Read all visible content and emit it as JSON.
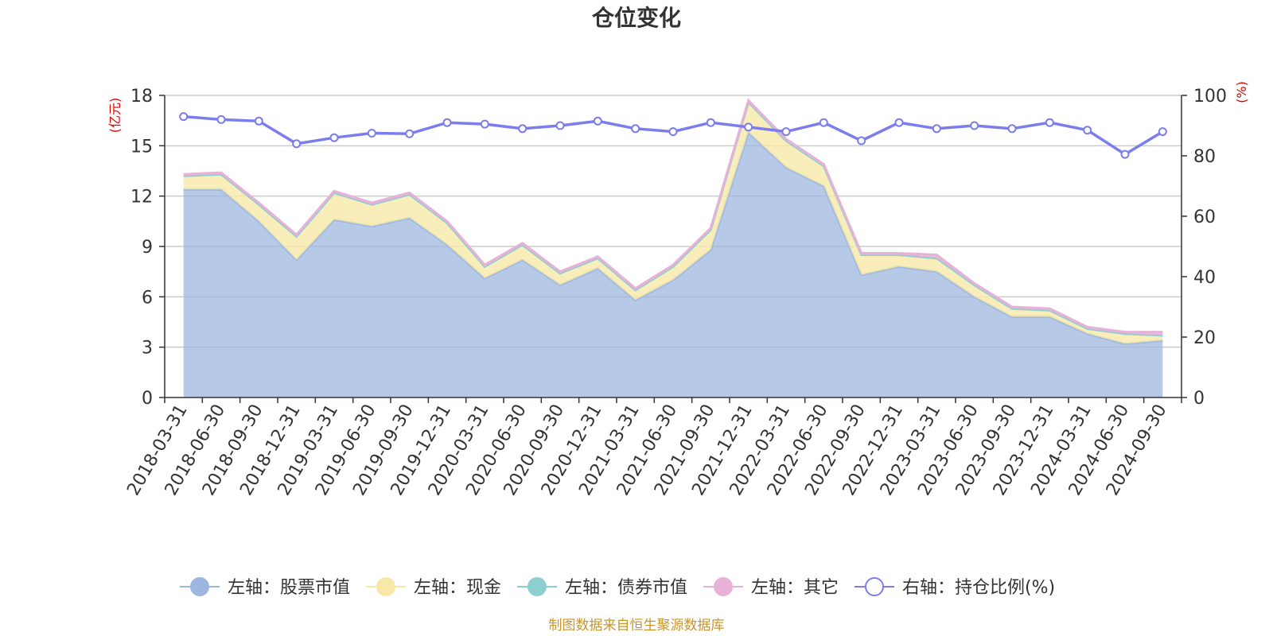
{
  "chart_data": {
    "type": "area",
    "title": "仓位变化",
    "left_unit": "(亿元)",
    "right_unit": "(%)",
    "left_ylim": [
      0,
      18
    ],
    "left_ticks": [
      "0",
      "3",
      "6",
      "9",
      "12",
      "15",
      "18"
    ],
    "right_ylim": [
      0,
      100
    ],
    "right_ticks": [
      "0",
      "20",
      "40",
      "60",
      "80",
      "100"
    ],
    "categories": [
      "2018-03-31",
      "2018-06-30",
      "2018-09-30",
      "2018-12-31",
      "2019-03-31",
      "2019-06-30",
      "2019-09-30",
      "2019-12-31",
      "2020-03-31",
      "2020-06-30",
      "2020-09-30",
      "2020-12-31",
      "2021-03-31",
      "2021-06-30",
      "2021-09-30",
      "2021-12-31",
      "2022-03-31",
      "2022-06-30",
      "2022-09-30",
      "2022-12-31",
      "2023-03-31",
      "2023-06-30",
      "2023-09-30",
      "2023-12-31",
      "2024-03-31",
      "2024-06-30",
      "2024-09-30"
    ],
    "series": [
      {
        "name": "左轴：股票市值",
        "axis": "left",
        "color": "#9db8e0",
        "values": [
          12.4,
          12.4,
          10.5,
          8.2,
          10.6,
          10.2,
          10.7,
          9.1,
          7.1,
          8.2,
          6.7,
          7.7,
          5.8,
          7.0,
          8.8,
          15.8,
          13.7,
          12.6,
          7.3,
          7.8,
          7.5,
          6.0,
          4.8,
          4.8,
          3.8,
          3.2,
          3.4
        ]
      },
      {
        "name": "左轴：现金",
        "axis": "left",
        "color": "#f8e8a8",
        "values": [
          0.8,
          0.9,
          1.0,
          1.4,
          1.6,
          1.3,
          1.4,
          1.3,
          0.7,
          0.9,
          0.7,
          0.6,
          0.6,
          0.8,
          1.2,
          1.8,
          1.6,
          1.2,
          1.2,
          0.7,
          0.8,
          0.7,
          0.5,
          0.4,
          0.3,
          0.6,
          0.3
        ]
      },
      {
        "name": "左轴：债券市值",
        "axis": "left",
        "color": "#8ccfd1",
        "values": [
          0,
          0,
          0,
          0,
          0,
          0,
          0,
          0,
          0,
          0,
          0,
          0,
          0,
          0,
          0,
          0,
          0,
          0,
          0,
          0,
          0,
          0,
          0,
          0,
          0,
          0,
          0
        ]
      },
      {
        "name": "左轴：其它",
        "axis": "left",
        "color": "#e8b2d8",
        "values": [
          0.1,
          0.1,
          0.1,
          0.1,
          0.1,
          0.1,
          0.1,
          0.1,
          0.1,
          0.1,
          0.1,
          0.1,
          0.1,
          0.1,
          0.1,
          0.1,
          0.1,
          0.1,
          0.1,
          0.1,
          0.2,
          0.1,
          0.1,
          0.1,
          0.1,
          0.1,
          0.2
        ]
      },
      {
        "name": "右轴：持仓比例(%)",
        "axis": "right",
        "color": "#7b7ded",
        "values": [
          93.0,
          92.0,
          91.5,
          84.0,
          86.0,
          87.5,
          87.3,
          91.0,
          90.5,
          89.0,
          90.0,
          91.5,
          89.0,
          88.0,
          91.0,
          89.5,
          88.0,
          91.0,
          85.0,
          91.0,
          89.0,
          90.0,
          89.0,
          91.0,
          88.5,
          80.5,
          88.0
        ]
      }
    ],
    "legend_position": "bottom-center",
    "grid": true
  },
  "source_text": "制图数据来自恒生聚源数据库"
}
